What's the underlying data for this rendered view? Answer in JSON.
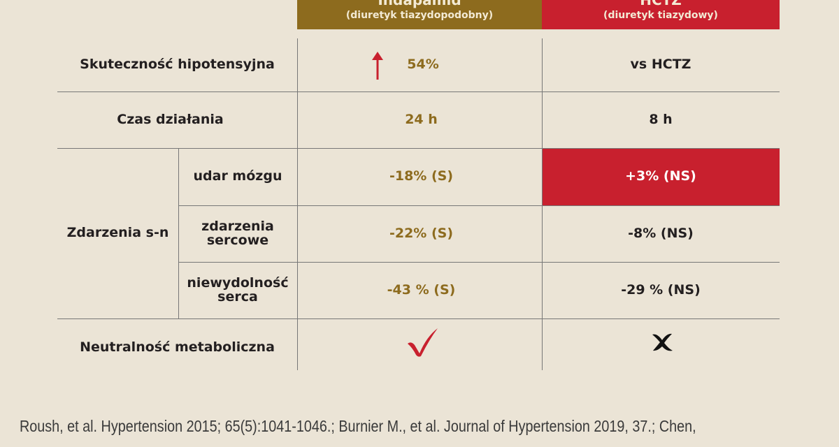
{
  "header": {
    "columns": [
      {
        "title": "Indapamid",
        "subtitle": "(diuretyk tiazydopodobny)"
      },
      {
        "title": "HCTZ",
        "subtitle": "(diuretyk tiazydowy)"
      }
    ]
  },
  "table": {
    "rows": [
      {
        "label": "Skuteczność hipotensyjna",
        "indapamid": "54%",
        "hctz": "vs HCTZ"
      },
      {
        "label": "Czas działania",
        "indapamid": "24 h",
        "hctz": "8 h"
      },
      {
        "label": "Zdarzenia s-n",
        "subrows": [
          {
            "label": "udar mózgu",
            "indapamid": "-18% (S)",
            "hctz": "+3% (NS)"
          },
          {
            "label": "zdarzenia sercowe",
            "indapamid": "-22% (S)",
            "hctz": "-8% (NS)"
          },
          {
            "label": "niewydolność serca",
            "indapamid": "-43 % (S)",
            "hctz": "-29 % (NS)"
          }
        ]
      },
      {
        "label": "Neutralność metaboliczna"
      }
    ]
  },
  "footer": {
    "citation": "Roush, et al. Hypertension 2015; 65(5):1041-1046.; Burnier M., et al. Journal of Hypertension 2019, 37.; Chen,"
  }
}
